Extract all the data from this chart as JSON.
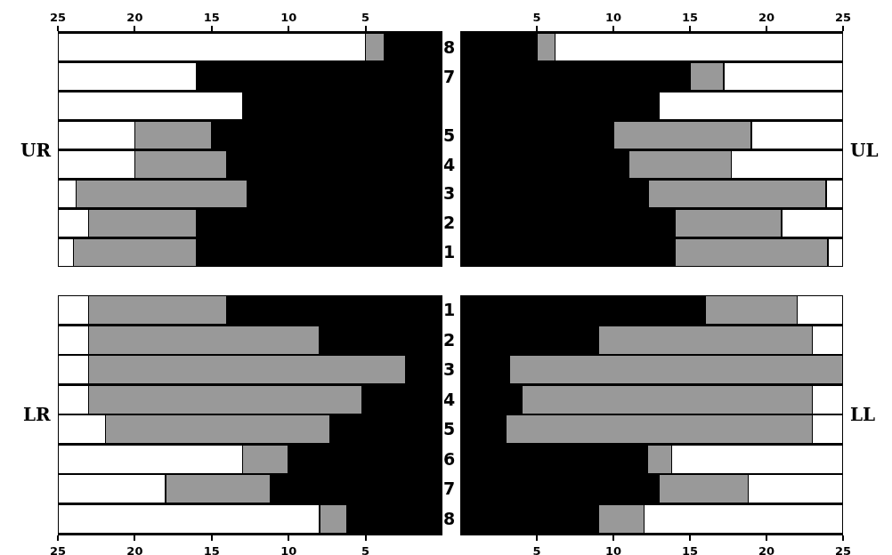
{
  "chart_data": [
    {
      "type": "bar",
      "orientation": "horizontal",
      "stacked": true,
      "ylabel": "UR",
      "categories": [
        "8",
        "7",
        null,
        "5",
        "4",
        "3",
        "2",
        "1"
      ],
      "xlim": [
        25,
        0
      ],
      "xticks": [
        25,
        20,
        15,
        10,
        5
      ],
      "series": [
        {
          "color": "#000000",
          "values": [
            3.8,
            16,
            13,
            15,
            14,
            12.7,
            16,
            16
          ]
        },
        {
          "color": "#999999",
          "values": [
            1.2,
            null,
            null,
            5,
            6,
            11.1,
            7,
            8
          ]
        },
        {
          "color": "#ffffff",
          "values": [
            20,
            9,
            12,
            5,
            5,
            1.2,
            2,
            1
          ]
        }
      ]
    },
    {
      "type": "bar",
      "orientation": "horizontal",
      "stacked": true,
      "ylabel": "UL",
      "tick_labels": "x",
      "categories": [
        "8",
        "7",
        null,
        "5",
        "4",
        "3",
        "2",
        "1"
      ],
      "xlim": [
        0,
        25
      ],
      "xticks": [
        5,
        10,
        15,
        20,
        25
      ],
      "series": [
        {
          "color": "#000000",
          "values": [
            5,
            15,
            13,
            10,
            11,
            12.3,
            14,
            14
          ]
        },
        {
          "color": "#999999",
          "values": [
            1.2,
            2.2,
            null,
            9,
            6.7,
            11.6,
            7,
            10
          ]
        },
        {
          "color": "#ffffff",
          "values": [
            18.8,
            7.8,
            12,
            6,
            7.3,
            1.1,
            4,
            1
          ]
        }
      ]
    },
    {
      "type": "bar",
      "orientation": "horizontal",
      "stacked": true,
      "ylabel": "LR",
      "categories": [
        "1",
        "2",
        "3",
        "4",
        "5",
        "6",
        "7",
        "8"
      ],
      "xlim": [
        25,
        0
      ],
      "xticks": [
        25,
        20,
        15,
        10,
        5
      ],
      "series": [
        {
          "color": "#000000",
          "values": [
            14,
            8,
            2.4,
            5.2,
            7.3,
            10,
            11.2,
            6.2
          ]
        },
        {
          "color": "#999999",
          "values": [
            9,
            15,
            20.6,
            17.8,
            14.6,
            3,
            6.8,
            1.8
          ]
        },
        {
          "color": "#ffffff",
          "values": [
            2,
            2,
            2,
            2,
            3.1,
            12,
            7,
            17
          ]
        }
      ]
    },
    {
      "type": "bar",
      "orientation": "horizontal",
      "stacked": true,
      "ylabel": "LL",
      "tick_labels": "x",
      "categories": [
        "1",
        "2",
        "3",
        "4",
        "5",
        "6",
        "7",
        "8"
      ],
      "xlim": [
        0,
        25
      ],
      "xticks": [
        5,
        10,
        15,
        20,
        25
      ],
      "series": [
        {
          "color": "#000000",
          "values": [
            16,
            9,
            3.2,
            4,
            3,
            12.2,
            13,
            9
          ]
        },
        {
          "color": "#999999",
          "values": [
            6,
            14,
            21.8,
            19,
            20,
            1.6,
            5.8,
            3
          ]
        },
        {
          "color": "#ffffff",
          "values": [
            3,
            2,
            null,
            2,
            2,
            11.2,
            6.2,
            13
          ]
        }
      ]
    }
  ]
}
